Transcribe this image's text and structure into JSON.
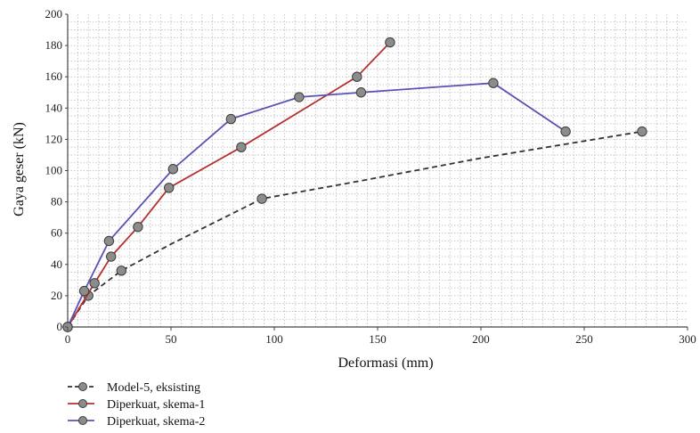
{
  "chart_data": {
    "type": "line",
    "title": "",
    "xlabel": "Deformasi (mm)",
    "ylabel": "Gaya geser (kN)",
    "xlim": [
      0,
      300
    ],
    "ylim": [
      0,
      200
    ],
    "xticks": [
      0,
      50,
      100,
      150,
      200,
      250,
      300
    ],
    "yticks": [
      0,
      20,
      40,
      60,
      80,
      100,
      120,
      140,
      160,
      180,
      200
    ],
    "grid": true,
    "legend_position": "bottom-left",
    "series": [
      {
        "name": "Model-5, eksisting",
        "color": "#333333",
        "dashed": true,
        "line_x": [
          0,
          10,
          26,
          50,
          94,
          140,
          200,
          278
        ],
        "line_y": [
          0,
          20,
          36,
          53,
          82,
          93,
          108,
          125
        ],
        "marker_x": [
          0,
          10,
          26,
          94,
          278
        ],
        "marker_y": [
          0,
          20,
          36,
          82,
          125
        ]
      },
      {
        "name": "Diperkuat, skema-1",
        "color": "#b5302f",
        "dashed": false,
        "line_x": [
          0,
          13,
          21,
          34,
          49,
          84,
          140,
          156
        ],
        "line_y": [
          0,
          28,
          45,
          64,
          89,
          115,
          160,
          182
        ],
        "marker_x": [
          0,
          13,
          21,
          34,
          49,
          84,
          140,
          156
        ],
        "marker_y": [
          0,
          28,
          45,
          64,
          89,
          115,
          160,
          182
        ]
      },
      {
        "name": "Diperkuat, skema-2",
        "color": "#5a52b4",
        "dashed": false,
        "line_x": [
          0,
          8,
          20,
          51,
          79,
          112,
          142,
          206,
          241
        ],
        "line_y": [
          0,
          23,
          55,
          101,
          133,
          147,
          150,
          156,
          125
        ],
        "marker_x": [
          0,
          8,
          20,
          51,
          79,
          112,
          142,
          206,
          241
        ],
        "marker_y": [
          0,
          23,
          55,
          101,
          133,
          147,
          150,
          156,
          125
        ]
      }
    ]
  }
}
